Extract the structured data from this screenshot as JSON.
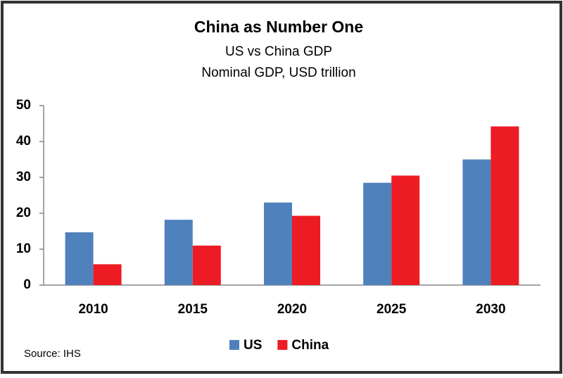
{
  "chart_data": {
    "type": "bar",
    "title": "China as Number One",
    "subtitle": [
      "US vs China GDP",
      "Nominal GDP, USD trillion"
    ],
    "categories": [
      "2010",
      "2015",
      "2020",
      "2025",
      "2030"
    ],
    "series": [
      {
        "name": "US",
        "color": "#4f81bd",
        "values": [
          14.7,
          18.2,
          23,
          28.5,
          35
        ]
      },
      {
        "name": "China",
        "color": "#ed1c24",
        "values": [
          5.8,
          11,
          19.3,
          30.5,
          44.2
        ]
      }
    ],
    "ylim": [
      0,
      50
    ],
    "yticks": [
      0,
      10,
      20,
      30,
      40,
      50
    ],
    "grid": false,
    "legend": "bottom",
    "source": "Source: IHS"
  }
}
